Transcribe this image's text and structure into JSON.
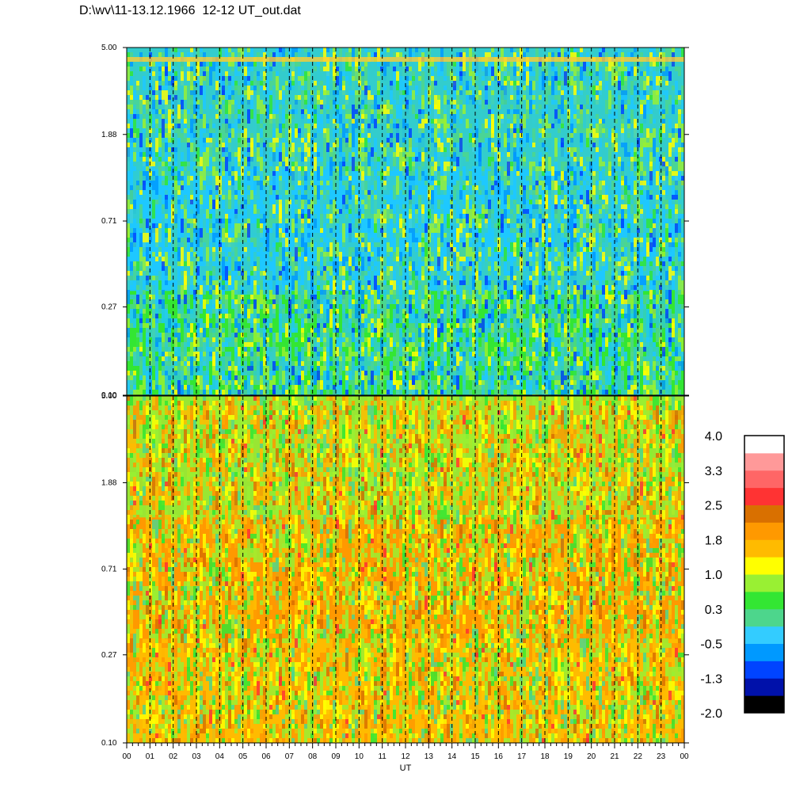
{
  "title": "D:\\wv\\11-13.12.1966  12-12 UT_out.dat",
  "chart_data": [
    {
      "type": "heatmap",
      "panel": "top",
      "title": "",
      "xlabel": "UT",
      "ylabel": "",
      "yscale": "log",
      "ylim": [
        0.1,
        5.0
      ],
      "yticks": [
        "5.00",
        "1.88",
        "0.71",
        "0.27",
        "0.10"
      ],
      "x_tick_labels": [
        "00",
        "01",
        "02",
        "03",
        "04",
        "05",
        "06",
        "07",
        "08",
        "09",
        "10",
        "11",
        "12",
        "13",
        "14",
        "15",
        "16",
        "17",
        "18",
        "19",
        "20",
        "21",
        "22",
        "23",
        "00"
      ],
      "xlim": [
        0,
        24
      ],
      "grid": "dashed vertical lines at every hour",
      "dominant_colors": {
        "high_freq": "#33cccc",
        "mid_freq": "#1ec8ff",
        "low_freq": "#33e633"
      }
    },
    {
      "type": "heatmap",
      "panel": "bottom",
      "title": "",
      "xlabel": "UT",
      "ylabel": "",
      "yscale": "log",
      "ylim": [
        0.1,
        5.0
      ],
      "yticks": [
        "5.00",
        "1.88",
        "0.71",
        "0.27",
        "0.10"
      ],
      "x_tick_labels": [
        "00",
        "01",
        "02",
        "03",
        "04",
        "05",
        "06",
        "07",
        "08",
        "09",
        "10",
        "11",
        "12",
        "13",
        "14",
        "15",
        "16",
        "17",
        "18",
        "19",
        "20",
        "21",
        "22",
        "23",
        "00"
      ],
      "xlim": [
        0,
        24
      ],
      "grid": "dashed vertical lines at every hour",
      "dominant_colors": {
        "high_freq": "#99e633",
        "mid_freq": "#ff9900",
        "low_freq": "#ffbb00"
      }
    }
  ],
  "colorbar": {
    "labels": [
      "4.0",
      "3.3",
      "2.5",
      "1.8",
      "1.0",
      "0.3",
      "-0.5",
      "-1.3",
      "-2.0"
    ],
    "colors": [
      "#000000",
      "#0011aa",
      "#0044ff",
      "#0099ff",
      "#33ccff",
      "#4dd68c",
      "#33e633",
      "#99f033",
      "#ffff00",
      "#ffbb00",
      "#ff9900",
      "#d97000",
      "#ff3333",
      "#ff6666",
      "#ff9999",
      "#ffffff"
    ]
  }
}
